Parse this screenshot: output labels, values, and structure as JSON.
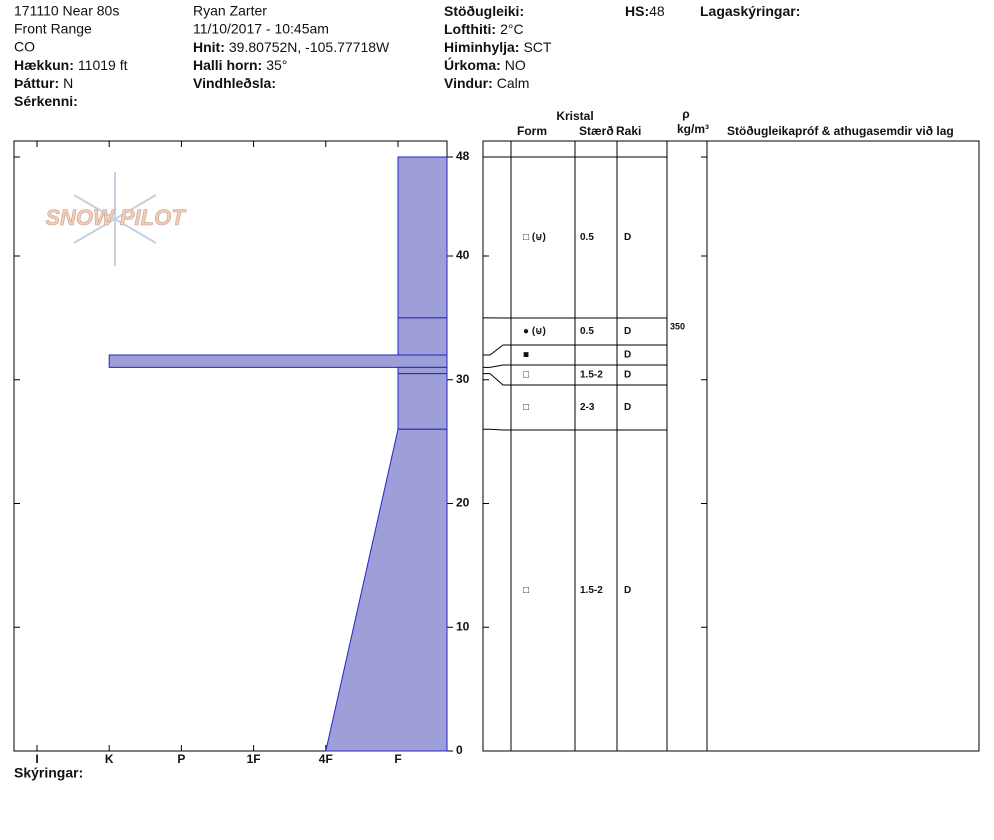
{
  "header": {
    "site": "171110 Near 80s",
    "range": "Front Range",
    "state": "CO",
    "elevation": {
      "label": "Hækkun:",
      "value": "11019 ft"
    },
    "aspect": {
      "label": "Þáttur:",
      "value": "N"
    },
    "features": {
      "label": "Sérkenni:"
    },
    "observer": "Ryan Zarter",
    "datetime": "11/10/2017 - 10:45am",
    "coords": {
      "label": "Hnit:",
      "value": "39.80752N, -105.77718W"
    },
    "slope": {
      "label": "Halli horn:",
      "value": "35°"
    },
    "wind_loading": {
      "label": "Vindhleðsla:"
    },
    "stability": {
      "label": "Stöðugleiki:"
    },
    "air_temp": {
      "label": "Lofthiti:",
      "value": "2°C"
    },
    "sky": {
      "label": "Himinhylja:",
      "value": "SCT"
    },
    "precip": {
      "label": "Úrkoma:",
      "value": "NO"
    },
    "wind": {
      "label": "Vindur:",
      "value": "Calm"
    },
    "hs": {
      "label": "HS:",
      "value": 48
    },
    "layer_notes": {
      "label": "Lagaskýringar:"
    }
  },
  "logo": "SNOW PILOT",
  "table_headers": {
    "crystal": "Kristal",
    "form": "Form",
    "size": "Stærð",
    "moisture": "Raki",
    "rho": "ρ",
    "density_unit": "kg/m³",
    "tests": "Stöðugleikapróf & athugasemdir við lag"
  },
  "chart_data": {
    "type": "snow-profile",
    "hardness_categories": [
      "I",
      "K",
      "P",
      "1F",
      "4F",
      "F"
    ],
    "ylim": [
      0,
      48
    ],
    "yticks": [
      0,
      10,
      20,
      30,
      40,
      48
    ],
    "color": "#9e9ed8",
    "layers": [
      {
        "top": 48,
        "bottom": 35,
        "hardness": "F",
        "form": "□ (⊍)",
        "size": "0.5",
        "moisture": "D"
      },
      {
        "top": 35,
        "bottom": 32,
        "hardness": "F",
        "form": "● (⊍)",
        "size": "0.5",
        "moisture": "D",
        "density": 350
      },
      {
        "top": 32,
        "bottom": 31,
        "hardness": "K",
        "form": "■",
        "moisture": "D"
      },
      {
        "top": 31,
        "bottom": 30.5,
        "hardness": "F",
        "form": "□",
        "size": "1.5-2",
        "moisture": "D"
      },
      {
        "top": 30.5,
        "bottom": 26,
        "hardness": "F",
        "form": "□",
        "size": "2-3",
        "moisture": "D"
      },
      {
        "top": 26,
        "bottom": 0,
        "hardness": "F",
        "hardness_bottom": "4F",
        "form": "□",
        "size": "1.5-2",
        "moisture": "D"
      }
    ]
  },
  "footer": {
    "label": "Skýringar:"
  }
}
